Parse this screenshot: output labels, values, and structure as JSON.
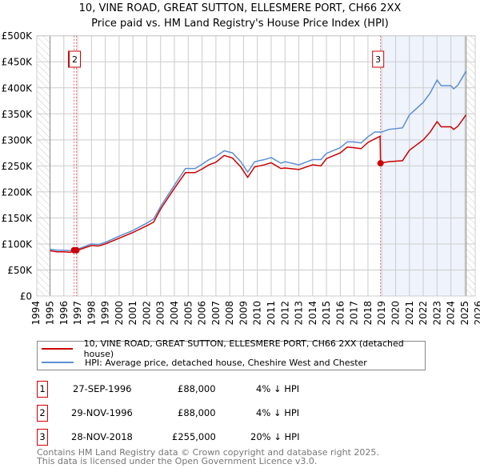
{
  "chart_data": {
    "type": "line",
    "title": "10, VINE ROAD, GREAT SUTTON, ELLESMERE PORT, CH66 2XX",
    "subtitle": "Price paid vs. HM Land Registry's House Price Index (HPI)",
    "xlim": [
      1994,
      2026
    ],
    "ylim": [
      0,
      500000
    ],
    "x_ticks": [
      "1994",
      "1995",
      "1996",
      "1997",
      "1998",
      "1999",
      "2000",
      "2001",
      "2002",
      "2003",
      "2004",
      "2005",
      "2006",
      "2007",
      "2008",
      "2009",
      "2010",
      "2011",
      "2012",
      "2013",
      "2014",
      "2015",
      "2016",
      "2017",
      "2018",
      "2019",
      "2020",
      "2021",
      "2022",
      "2023",
      "2024",
      "2025",
      "2026"
    ],
    "y_ticks": [
      {
        "v": 0,
        "label": "£0"
      },
      {
        "v": 50000,
        "label": "£50K"
      },
      {
        "v": 100000,
        "label": "£100K"
      },
      {
        "v": 150000,
        "label": "£150K"
      },
      {
        "v": 200000,
        "label": "£200K"
      },
      {
        "v": 250000,
        "label": "£250K"
      },
      {
        "v": 300000,
        "label": "£300K"
      },
      {
        "v": 350000,
        "label": "£350K"
      },
      {
        "v": 400000,
        "label": "£400K"
      },
      {
        "v": 450000,
        "label": "£450K"
      },
      {
        "v": 500000,
        "label": "£500K"
      }
    ],
    "grid": true,
    "hatched_ranges": [
      [
        1994,
        1995
      ],
      [
        2025.1,
        2026
      ]
    ],
    "shaded_range": [
      2018.91,
      2025.1
    ],
    "series": [
      {
        "name": "10, VINE ROAD, GREAT SUTTON, ELLESMERE PORT, CH66 2XX (detached house)",
        "color": "#cc0000",
        "x": [
          1995,
          1995.5,
          1996,
          1996.5,
          1996.74,
          1997,
          1998,
          1998.5,
          1999,
          2000,
          2001,
          2002,
          2002.5,
          2003,
          2004,
          2004.8,
          2005.5,
          2006,
          2006.5,
          2007,
          2007.6,
          2008.2,
          2008.8,
          2009.3,
          2009.8,
          2010.5,
          2011,
          2011.7,
          2012,
          2013,
          2014,
          2014.6,
          2015,
          2016,
          2016.5,
          2017,
          2017.5,
          2018,
          2018.5,
          2018.88,
          2018.91,
          2019,
          2019.5,
          2020.5,
          2021,
          2021.5,
          2022,
          2022.5,
          2023,
          2023.3,
          2024,
          2024.2,
          2024.5,
          2025.1
        ],
        "y": [
          87000,
          85000,
          85000,
          84000,
          88000,
          88000,
          97000,
          96000,
          100000,
          111000,
          122000,
          135000,
          142000,
          167000,
          207000,
          237000,
          237000,
          244000,
          252000,
          257000,
          270000,
          265000,
          248000,
          228000,
          248000,
          252000,
          256000,
          245000,
          246000,
          243000,
          252000,
          250000,
          264000,
          275000,
          286000,
          285000,
          283000,
          295000,
          302000,
          307000,
          255000,
          256000,
          258000,
          260000,
          280000,
          290000,
          300000,
          315000,
          335000,
          325000,
          325000,
          320000,
          326000,
          348000
        ]
      },
      {
        "name": "HPI: Average price, detached house, Cheshire West and Chester",
        "color": "#5b8fd4",
        "x": [
          1995,
          1995.5,
          1996,
          1996.5,
          1997,
          1998,
          1998.5,
          1999,
          2000,
          2001,
          2002,
          2002.5,
          2003,
          2004,
          2004.8,
          2005.5,
          2006,
          2006.5,
          2007,
          2007.6,
          2008.2,
          2008.8,
          2009.3,
          2009.8,
          2010.5,
          2011,
          2011.7,
          2012,
          2013,
          2014,
          2014.6,
          2015,
          2016,
          2016.5,
          2017,
          2017.5,
          2018,
          2018.5,
          2019,
          2019.5,
          2020.5,
          2021,
          2021.5,
          2022,
          2022.5,
          2023,
          2023.3,
          2024,
          2024.2,
          2024.5,
          2025.1
        ],
        "y": [
          90000,
          88000,
          88000,
          87000,
          90000,
          100000,
          99000,
          103000,
          115000,
          126000,
          140000,
          148000,
          172000,
          213000,
          245000,
          245000,
          253000,
          262000,
          268000,
          279000,
          275000,
          258000,
          238000,
          258000,
          262000,
          266000,
          255000,
          258000,
          252000,
          262000,
          262000,
          274000,
          285000,
          296000,
          296000,
          294000,
          306000,
          315000,
          315000,
          320000,
          323000,
          348000,
          360000,
          372000,
          390000,
          415000,
          404000,
          404000,
          398000,
          405000,
          432000
        ]
      }
    ],
    "sales": [
      {
        "label": "1",
        "date": "27-SEP-1996",
        "x": 1996.74,
        "price": "£88,000",
        "value": 88000,
        "hpi_diff": "4% ↓ HPI"
      },
      {
        "label": "2",
        "date": "29-NOV-1996",
        "x": 1996.91,
        "price": "£88,000",
        "value": 88000,
        "hpi_diff": "4% ↓ HPI"
      },
      {
        "label": "3",
        "date": "28-NOV-2018",
        "x": 2018.91,
        "price": "£255,000",
        "value": 255000,
        "hpi_diff": "20% ↓ HPI"
      }
    ]
  },
  "footer": {
    "line1": "Contains HM Land Registry data © Crown copyright and database right 2025.",
    "line2": "This data is licensed under the Open Government Licence v3.0."
  }
}
